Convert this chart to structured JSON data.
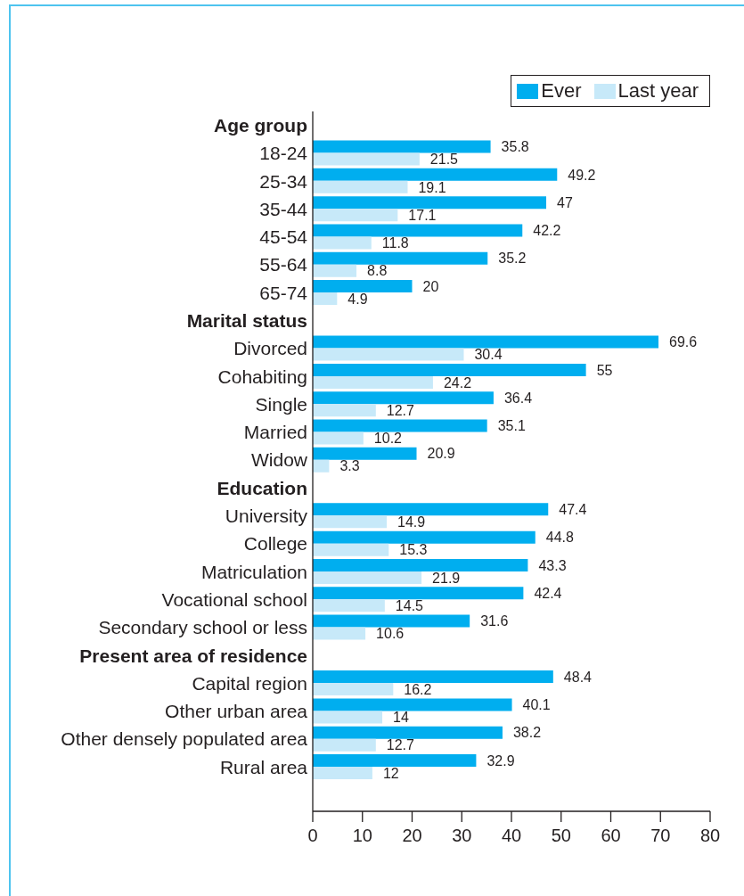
{
  "chart_data": {
    "type": "bar",
    "orientation": "horizontal",
    "categories": [
      "Age group",
      "18-24",
      "25-34",
      "35-44",
      "45-54",
      "55-64",
      "65-74",
      "Marital status",
      "Divorced",
      "Cohabiting",
      "Single",
      "Married",
      "Widow",
      "Education",
      "University",
      "College",
      "Matriculation",
      "Vocational school",
      "Secondary school or less",
      "Present area of residence",
      "Capital region",
      "Other urban area",
      "Other densely populated area",
      "Rural area"
    ],
    "series": [
      {
        "name": "Ever",
        "color": "#00aeef",
        "values": [
          null,
          35.8,
          49.2,
          47,
          42.2,
          35.2,
          20,
          null,
          69.6,
          55,
          36.4,
          35.1,
          20.9,
          null,
          47.4,
          44.8,
          43.3,
          42.4,
          31.6,
          null,
          48.4,
          40.1,
          38.2,
          32.9
        ]
      },
      {
        "name": "Last year",
        "color": "#c7e9f9",
        "values": [
          null,
          21.5,
          19.1,
          17.1,
          11.8,
          8.8,
          4.9,
          null,
          30.4,
          24.2,
          12.7,
          10.2,
          3.3,
          null,
          14.9,
          15.3,
          21.9,
          14.5,
          10.6,
          null,
          16.2,
          14,
          12.7,
          12
        ]
      }
    ],
    "xlim": [
      0,
      80
    ],
    "xticks": [
      0,
      10,
      20,
      30,
      40,
      50,
      60,
      70,
      80
    ],
    "data_labels": true,
    "legend": "top right"
  }
}
